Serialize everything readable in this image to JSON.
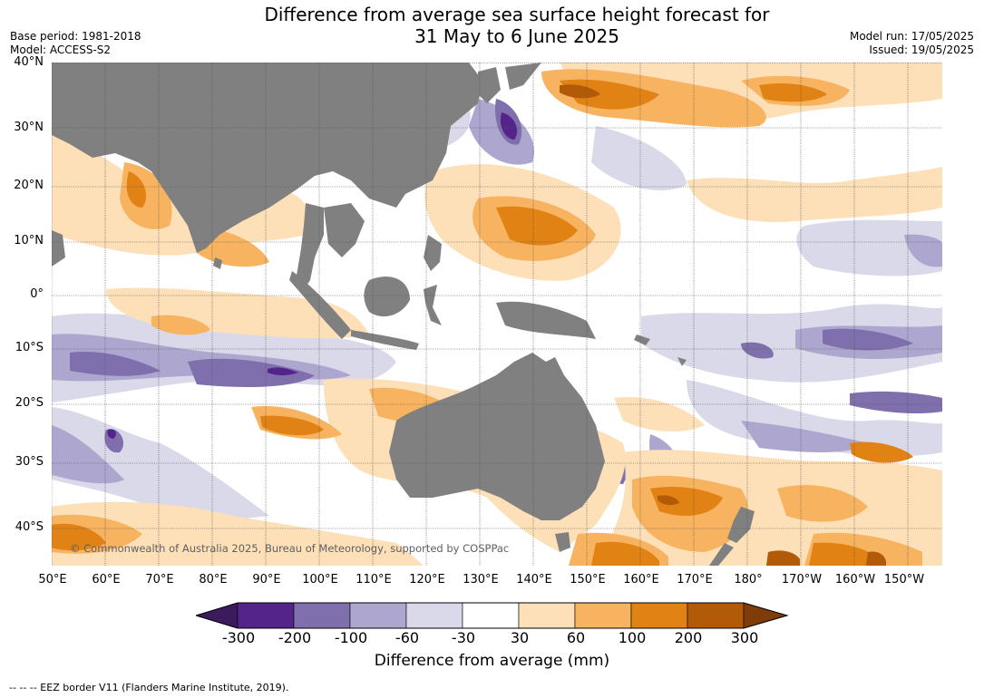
{
  "title_line1": "Difference from average sea surface height forecast for",
  "title_line2": "31 May to 6 June 2025",
  "base_period": "Base period: 1981-2018",
  "model": "Model: ACCESS-S2",
  "model_run": "Model run: 17/05/2025",
  "issued": "Issued: 19/05/2025",
  "copyright": "© Commonwealth of Australia 2025, Bureau of Meteorology, supported by COSPPac",
  "lat_labels": [
    "40°N",
    "30°N",
    "20°N",
    "10°N",
    "0°",
    "10°S",
    "20°S",
    "30°S",
    "40°S"
  ],
  "lon_labels": [
    "50°E",
    "60°E",
    "70°E",
    "80°E",
    "90°E",
    "100°E",
    "110°E",
    "120°E",
    "130°E",
    "140°E",
    "150°E",
    "160°E",
    "170°E",
    "180°",
    "170°W",
    "160°W",
    "150°W"
  ],
  "colorbar": {
    "ticks": [
      "-300",
      "-200",
      "-100",
      "-60",
      "-30",
      "30",
      "60",
      "100",
      "200",
      "300"
    ],
    "colors": [
      "#3d1a5e",
      "#55248a",
      "#7f6fad",
      "#ada7d0",
      "#d9d9ea",
      "#ffffff",
      "#fde0b8",
      "#f7b360",
      "#e08214",
      "#b35a08",
      "#7f3b08"
    ],
    "label": "Difference from average (mm)"
  },
  "legend_footnote": "--  --  -- EEZ border V11 (Flanders Marine Institute, 2019).",
  "colors": {
    "land": "#808080",
    "ocean_base": "#ffffff",
    "grid": "#555555"
  }
}
